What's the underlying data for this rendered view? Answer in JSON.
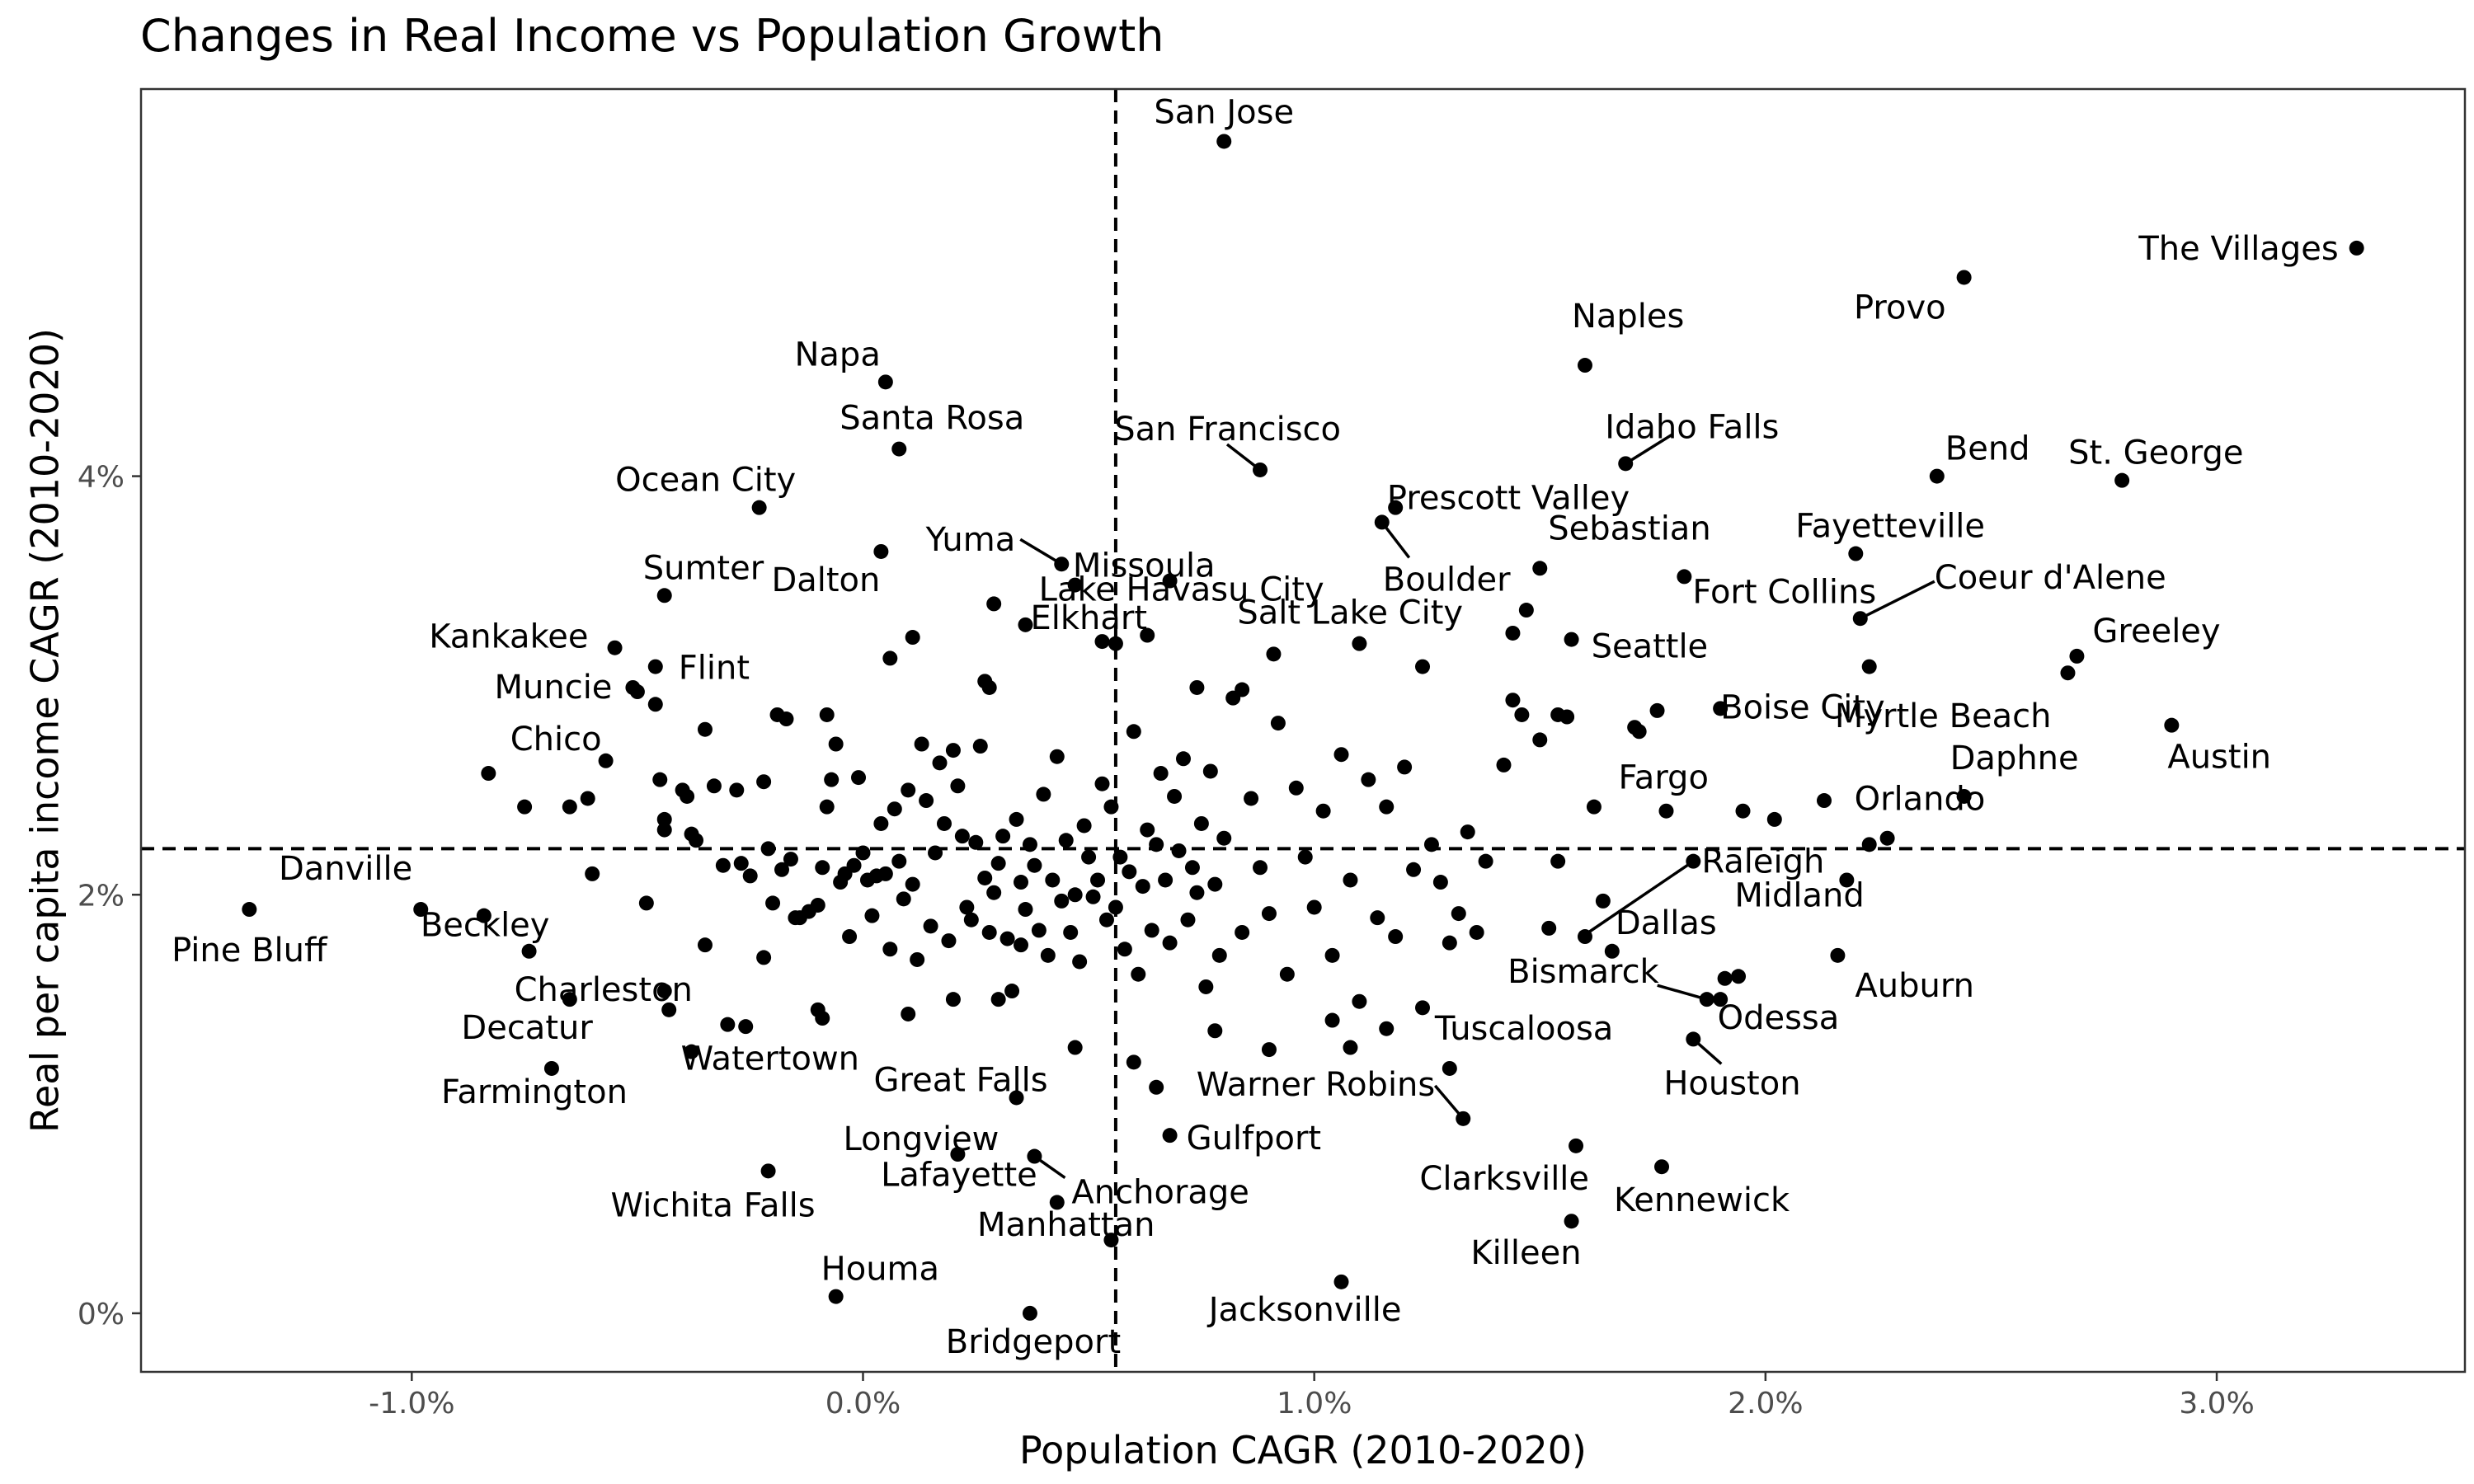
{
  "chart_data": {
    "type": "scatter",
    "title": "Changes in Real Income vs Population Growth",
    "xlabel": "Population CAGR (2010-2020)",
    "ylabel": "Real per capita income CAGR (2010-2020)",
    "xlim": [
      -1.6,
      3.55
    ],
    "ylim": [
      -0.28,
      5.85
    ],
    "x_ticks": [
      {
        "value": -1.0,
        "label": "-1.0%"
      },
      {
        "value": 0.0,
        "label": "0.0%"
      },
      {
        "value": 1.0,
        "label": "1.0%"
      },
      {
        "value": 2.0,
        "label": "2.0%"
      },
      {
        "value": 3.0,
        "label": "3.0%"
      }
    ],
    "y_ticks": [
      {
        "value": 0,
        "label": "0%"
      },
      {
        "value": 2,
        "label": "2%"
      },
      {
        "value": 4,
        "label": "4%"
      }
    ],
    "grid": false,
    "reference_lines": {
      "x": 0.56,
      "y": 2.22,
      "style": "dashed"
    },
    "labeled_points": [
      {
        "name": "San Jose",
        "x": 0.8,
        "y": 5.6
      },
      {
        "name": "The Villages",
        "x": 3.31,
        "y": 5.09
      },
      {
        "name": "Provo",
        "x": 2.44,
        "y": 4.95
      },
      {
        "name": "Naples",
        "x": 1.6,
        "y": 4.53
      },
      {
        "name": "Napa",
        "x": 0.05,
        "y": 4.45
      },
      {
        "name": "Santa Rosa",
        "x": 0.08,
        "y": 4.13
      },
      {
        "name": "Idaho Falls",
        "x": 1.69,
        "y": 4.06
      },
      {
        "name": "San Francisco",
        "x": 0.88,
        "y": 4.03
      },
      {
        "name": "Bend",
        "x": 2.38,
        "y": 4.0
      },
      {
        "name": "St. George",
        "x": 2.79,
        "y": 3.98
      },
      {
        "name": "Prescott Valley",
        "x": 1.18,
        "y": 3.85
      },
      {
        "name": "Ocean City",
        "x": -0.23,
        "y": 3.85
      },
      {
        "name": "Boulder",
        "x": 1.15,
        "y": 3.78
      },
      {
        "name": "Missoula",
        "x": 0.68,
        "y": 3.5
      },
      {
        "name": "Dalton",
        "x": 0.04,
        "y": 3.64
      },
      {
        "name": "Fayetteville",
        "x": 2.2,
        "y": 3.63
      },
      {
        "name": "Yuma",
        "x": 0.44,
        "y": 3.58
      },
      {
        "name": "Sebastian",
        "x": 1.5,
        "y": 3.56
      },
      {
        "name": "Fort Collins",
        "x": 1.82,
        "y": 3.52
      },
      {
        "name": "Lake Havasu City",
        "x": 0.47,
        "y": 3.48
      },
      {
        "name": "Sumter",
        "x": -0.44,
        "y": 3.43
      },
      {
        "name": "Elkhart",
        "x": 0.53,
        "y": 3.21
      },
      {
        "name": "Salt Lake City",
        "x": 1.1,
        "y": 3.2
      },
      {
        "name": "Coeur d'Alene",
        "x": 2.21,
        "y": 3.32
      },
      {
        "name": "Seattle",
        "x": 1.57,
        "y": 3.22
      },
      {
        "name": "Kankakee",
        "x": -0.55,
        "y": 3.18
      },
      {
        "name": "Greeley",
        "x": 2.69,
        "y": 3.14
      },
      {
        "name": "Flint",
        "x": -0.46,
        "y": 3.09
      },
      {
        "name": "Muncie",
        "x": -0.51,
        "y": 2.99
      },
      {
        "name": "Boise City",
        "x": 1.9,
        "y": 2.89
      },
      {
        "name": "Myrtle Beach",
        "x": 2.67,
        "y": 3.06
      },
      {
        "name": "Austin",
        "x": 2.9,
        "y": 2.81
      },
      {
        "name": "Chico",
        "x": -0.57,
        "y": 2.64
      },
      {
        "name": "Daphne",
        "x": 2.44,
        "y": 2.47
      },
      {
        "name": "Fargo",
        "x": 1.78,
        "y": 2.4
      },
      {
        "name": "Orlando",
        "x": 2.27,
        "y": 2.27
      },
      {
        "name": "Raleigh",
        "x": 1.84,
        "y": 2.16
      },
      {
        "name": "Danville",
        "x": -0.98,
        "y": 1.93
      },
      {
        "name": "Pine Bluff",
        "x": -1.36,
        "y": 1.93
      },
      {
        "name": "Beckley",
        "x": -0.84,
        "y": 1.9
      },
      {
        "name": "Dallas",
        "x": 1.64,
        "y": 1.97
      },
      {
        "name": "Midland",
        "x": 2.18,
        "y": 2.07
      },
      {
        "name": "Auburn",
        "x": 2.16,
        "y": 1.71
      },
      {
        "name": "Charleston",
        "x": -0.74,
        "y": 1.73
      },
      {
        "name": "Bismarck",
        "x": 1.87,
        "y": 1.5
      },
      {
        "name": "Decatur",
        "x": -0.65,
        "y": 1.5
      },
      {
        "name": "Odessa",
        "x": 1.91,
        "y": 1.6
      },
      {
        "name": "Tuscaloosa",
        "x": 1.3,
        "y": 1.17
      },
      {
        "name": "Houston",
        "x": 1.84,
        "y": 1.31
      },
      {
        "name": "Watertown",
        "x": -0.38,
        "y": 1.25
      },
      {
        "name": "Farmington",
        "x": -0.69,
        "y": 1.17
      },
      {
        "name": "Great Falls",
        "x": 0.34,
        "y": 1.03
      },
      {
        "name": "Warner Robins",
        "x": 1.33,
        "y": 0.93
      },
      {
        "name": "Longview",
        "x": 0.21,
        "y": 0.76
      },
      {
        "name": "Gulfport",
        "x": 0.68,
        "y": 0.85
      },
      {
        "name": "Anchorage",
        "x": 0.38,
        "y": 0.75
      },
      {
        "name": "Clarksville",
        "x": 1.58,
        "y": 0.8
      },
      {
        "name": "Kennewick",
        "x": 1.77,
        "y": 0.7
      },
      {
        "name": "Lafayette",
        "x": 0.43,
        "y": 0.53
      },
      {
        "name": "Wichita Falls",
        "x": -0.21,
        "y": 0.68
      },
      {
        "name": "Killeen",
        "x": 1.57,
        "y": 0.44
      },
      {
        "name": "Manhattan",
        "x": 0.55,
        "y": 0.35
      },
      {
        "name": "Houma",
        "x": -0.06,
        "y": 0.08
      },
      {
        "name": "Jacksonville",
        "x": 1.06,
        "y": 0.15
      },
      {
        "name": "Bridgeport",
        "x": 0.37,
        "y": 0.0
      }
    ],
    "unlabeled_points": [
      [
        -0.83,
        2.58
      ],
      [
        -0.75,
        2.42
      ],
      [
        -0.65,
        2.42
      ],
      [
        -0.61,
        2.46
      ],
      [
        -0.6,
        2.1
      ],
      [
        -0.48,
        1.96
      ],
      [
        -0.45,
        2.55
      ],
      [
        -0.44,
        2.36
      ],
      [
        -0.44,
        2.31
      ],
      [
        -0.4,
        2.5
      ],
      [
        -0.39,
        2.47
      ],
      [
        -0.38,
        2.29
      ],
      [
        -0.37,
        2.26
      ],
      [
        -0.35,
        2.79
      ],
      [
        -0.33,
        2.52
      ],
      [
        -0.31,
        2.14
      ],
      [
        -0.28,
        2.5
      ],
      [
        -0.27,
        2.15
      ],
      [
        -0.25,
        2.09
      ],
      [
        -0.22,
        2.54
      ],
      [
        -0.21,
        2.22
      ],
      [
        -0.2,
        1.96
      ],
      [
        -0.19,
        2.86
      ],
      [
        -0.18,
        2.12
      ],
      [
        -0.17,
        2.84
      ],
      [
        -0.16,
        2.17
      ],
      [
        -0.15,
        1.89
      ],
      [
        -0.14,
        1.89
      ],
      [
        -0.12,
        1.92
      ],
      [
        -0.1,
        1.95
      ],
      [
        -0.09,
        2.13
      ],
      [
        -0.08,
        2.86
      ],
      [
        -0.08,
        2.42
      ],
      [
        -0.07,
        2.55
      ],
      [
        -0.06,
        2.72
      ],
      [
        -0.05,
        2.06
      ],
      [
        -0.04,
        2.1
      ],
      [
        -0.03,
        1.8
      ],
      [
        -0.02,
        2.14
      ],
      [
        -0.01,
        2.56
      ],
      [
        0.0,
        2.2
      ],
      [
        0.01,
        2.07
      ],
      [
        0.02,
        1.9
      ],
      [
        0.03,
        2.09
      ],
      [
        0.04,
        2.34
      ],
      [
        0.05,
        2.1
      ],
      [
        0.06,
        1.74
      ],
      [
        0.07,
        2.41
      ],
      [
        0.08,
        2.16
      ],
      [
        0.09,
        1.98
      ],
      [
        0.1,
        2.5
      ],
      [
        0.11,
        2.05
      ],
      [
        0.12,
        1.69
      ],
      [
        0.13,
        2.72
      ],
      [
        0.14,
        2.45
      ],
      [
        0.15,
        1.85
      ],
      [
        0.16,
        2.2
      ],
      [
        0.17,
        2.63
      ],
      [
        0.18,
        2.34
      ],
      [
        0.19,
        1.78
      ],
      [
        0.2,
        2.69
      ],
      [
        0.21,
        2.52
      ],
      [
        0.22,
        2.28
      ],
      [
        0.23,
        1.94
      ],
      [
        0.24,
        1.88
      ],
      [
        0.25,
        2.25
      ],
      [
        0.26,
        2.71
      ],
      [
        0.27,
        2.08
      ],
      [
        0.28,
        1.82
      ],
      [
        0.29,
        2.01
      ],
      [
        0.3,
        2.15
      ],
      [
        0.31,
        2.28
      ],
      [
        0.32,
        1.79
      ],
      [
        0.33,
        1.54
      ],
      [
        0.34,
        2.36
      ],
      [
        0.35,
        2.06
      ],
      [
        0.36,
        1.93
      ],
      [
        0.37,
        2.24
      ],
      [
        0.38,
        2.14
      ],
      [
        0.39,
        1.83
      ],
      [
        0.4,
        2.48
      ],
      [
        0.41,
        1.71
      ],
      [
        0.42,
        2.07
      ],
      [
        0.43,
        2.66
      ],
      [
        0.44,
        1.97
      ],
      [
        0.45,
        2.26
      ],
      [
        0.46,
        1.82
      ],
      [
        0.47,
        2.0
      ],
      [
        0.48,
        1.68
      ],
      [
        0.49,
        2.33
      ],
      [
        0.5,
        2.18
      ],
      [
        0.51,
        1.99
      ],
      [
        0.52,
        2.07
      ],
      [
        0.53,
        2.53
      ],
      [
        0.54,
        1.88
      ],
      [
        0.55,
        2.42
      ],
      [
        0.56,
        1.94
      ],
      [
        0.57,
        2.18
      ],
      [
        0.58,
        1.74
      ],
      [
        0.59,
        2.11
      ],
      [
        0.6,
        2.78
      ],
      [
        0.61,
        1.62
      ],
      [
        0.62,
        2.04
      ],
      [
        0.63,
        2.31
      ],
      [
        0.64,
        1.83
      ],
      [
        0.65,
        2.24
      ],
      [
        0.66,
        2.58
      ],
      [
        0.67,
        2.07
      ],
      [
        0.68,
        1.77
      ],
      [
        0.69,
        2.47
      ],
      [
        0.7,
        2.21
      ],
      [
        0.71,
        2.65
      ],
      [
        0.72,
        1.88
      ],
      [
        0.73,
        2.13
      ],
      [
        0.74,
        2.01
      ],
      [
        0.75,
        2.34
      ],
      [
        0.76,
        1.56
      ],
      [
        0.77,
        2.59
      ],
      [
        0.78,
        2.05
      ],
      [
        0.79,
        1.71
      ],
      [
        0.8,
        2.27
      ],
      [
        0.82,
        2.94
      ],
      [
        0.84,
        1.82
      ],
      [
        0.86,
        2.46
      ],
      [
        0.88,
        2.13
      ],
      [
        0.9,
        1.91
      ],
      [
        0.92,
        2.82
      ],
      [
        0.94,
        1.62
      ],
      [
        0.96,
        2.51
      ],
      [
        0.98,
        2.18
      ],
      [
        1.0,
        1.94
      ],
      [
        1.02,
        2.4
      ],
      [
        1.04,
        1.71
      ],
      [
        1.06,
        2.67
      ],
      [
        1.08,
        2.07
      ],
      [
        1.1,
        1.49
      ],
      [
        1.12,
        2.55
      ],
      [
        1.14,
        1.89
      ],
      [
        1.16,
        2.42
      ],
      [
        1.18,
        1.8
      ],
      [
        1.2,
        2.61
      ],
      [
        1.22,
        2.12
      ],
      [
        1.24,
        1.46
      ],
      [
        1.26,
        2.24
      ],
      [
        1.28,
        2.06
      ],
      [
        1.3,
        1.77
      ],
      [
        1.32,
        1.91
      ],
      [
        1.34,
        2.3
      ],
      [
        1.36,
        1.82
      ],
      [
        1.38,
        2.16
      ],
      [
        1.42,
        2.62
      ],
      [
        1.44,
        2.93
      ],
      [
        1.46,
        2.86
      ],
      [
        1.5,
        2.74
      ],
      [
        1.52,
        1.84
      ],
      [
        1.54,
        2.16
      ],
      [
        1.56,
        2.85
      ],
      [
        1.6,
        1.8
      ],
      [
        1.66,
        1.73
      ],
      [
        1.72,
        2.78
      ],
      [
        -0.5,
        2.97
      ],
      [
        -0.46,
        2.91
      ],
      [
        -0.22,
        1.7
      ],
      [
        -0.3,
        1.38
      ],
      [
        -0.26,
        1.37
      ],
      [
        -0.1,
        1.45
      ],
      [
        -0.09,
        1.41
      ],
      [
        0.1,
        1.43
      ],
      [
        0.2,
        1.5
      ],
      [
        0.3,
        1.5
      ],
      [
        0.47,
        1.27
      ],
      [
        0.6,
        1.2
      ],
      [
        0.65,
        1.08
      ],
      [
        0.78,
        1.35
      ],
      [
        0.9,
        1.26
      ],
      [
        1.04,
        1.4
      ],
      [
        1.08,
        1.27
      ],
      [
        1.16,
        1.36
      ],
      [
        0.35,
        1.76
      ],
      [
        -0.35,
        1.76
      ],
      [
        -0.44,
        1.54
      ],
      [
        -0.43,
        1.45
      ],
      [
        0.63,
        3.24
      ],
      [
        0.74,
        2.99
      ],
      [
        0.84,
        2.98
      ],
      [
        0.27,
        3.02
      ],
      [
        0.28,
        2.99
      ],
      [
        0.11,
        3.23
      ],
      [
        0.06,
        3.13
      ],
      [
        0.29,
        3.39
      ],
      [
        0.36,
        3.29
      ],
      [
        0.56,
        3.2
      ],
      [
        0.91,
        3.15
      ],
      [
        1.24,
        3.09
      ],
      [
        1.47,
        3.36
      ],
      [
        1.44,
        3.25
      ],
      [
        1.54,
        2.86
      ],
      [
        1.71,
        2.8
      ],
      [
        1.76,
        2.88
      ],
      [
        1.9,
        1.5
      ],
      [
        1.94,
        1.61
      ],
      [
        1.95,
        2.4
      ],
      [
        2.02,
        2.36
      ],
      [
        2.13,
        2.45
      ],
      [
        2.23,
        3.09
      ],
      [
        1.62,
        2.42
      ],
      [
        2.23,
        2.24
      ]
    ]
  }
}
